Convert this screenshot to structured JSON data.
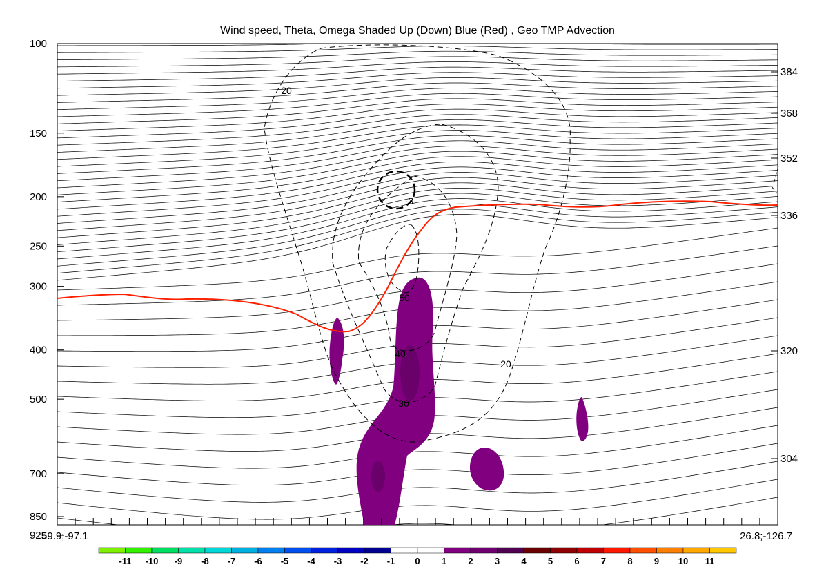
{
  "chart_data": {
    "type": "contour",
    "title": "Wind speed, Theta, Omega Shaded Up (Down) Blue (Red) , Geo TMP Advection",
    "y_axis_left": {
      "label": "",
      "scale": "log pressure",
      "ticks": [
        100,
        150,
        200,
        250,
        300,
        400,
        500,
        700,
        850,
        925
      ]
    },
    "y_axis_right": {
      "label": "",
      "ticks": [
        384,
        368,
        352,
        336,
        320,
        304
      ]
    },
    "x_endpoints": {
      "left": "59.9;-97.1",
      "right": "26.8;-126.7"
    },
    "wind_speed_contour_labels": [
      "20",
      "50",
      "40",
      "30",
      "20",
      "-3"
    ],
    "tropopause_line_color": "#ff2000",
    "omega_shading_color": "#800080",
    "colorbar": {
      "labels": [
        "-11",
        "-10",
        "-9",
        "-8",
        "-7",
        "-6",
        "-5",
        "-4",
        "-3",
        "-2",
        "-1",
        "0",
        "1",
        "2",
        "3",
        "4",
        "5",
        "6",
        "7",
        "8",
        "9",
        "10",
        "11"
      ],
      "colors": [
        "#7ff000",
        "#33f000",
        "#00e060",
        "#00e0a8",
        "#00d8d8",
        "#00b0e0",
        "#0080f0",
        "#0050f0",
        "#0020e0",
        "#0000c0",
        "#000090",
        "#ffffff",
        "#ffffff",
        "#800080",
        "#700070",
        "#500050",
        "#6a0000",
        "#900000",
        "#c00000",
        "#ff1800",
        "#ff5000",
        "#ff8000",
        "#ffa800",
        "#ffc800"
      ]
    },
    "grid": false
  }
}
